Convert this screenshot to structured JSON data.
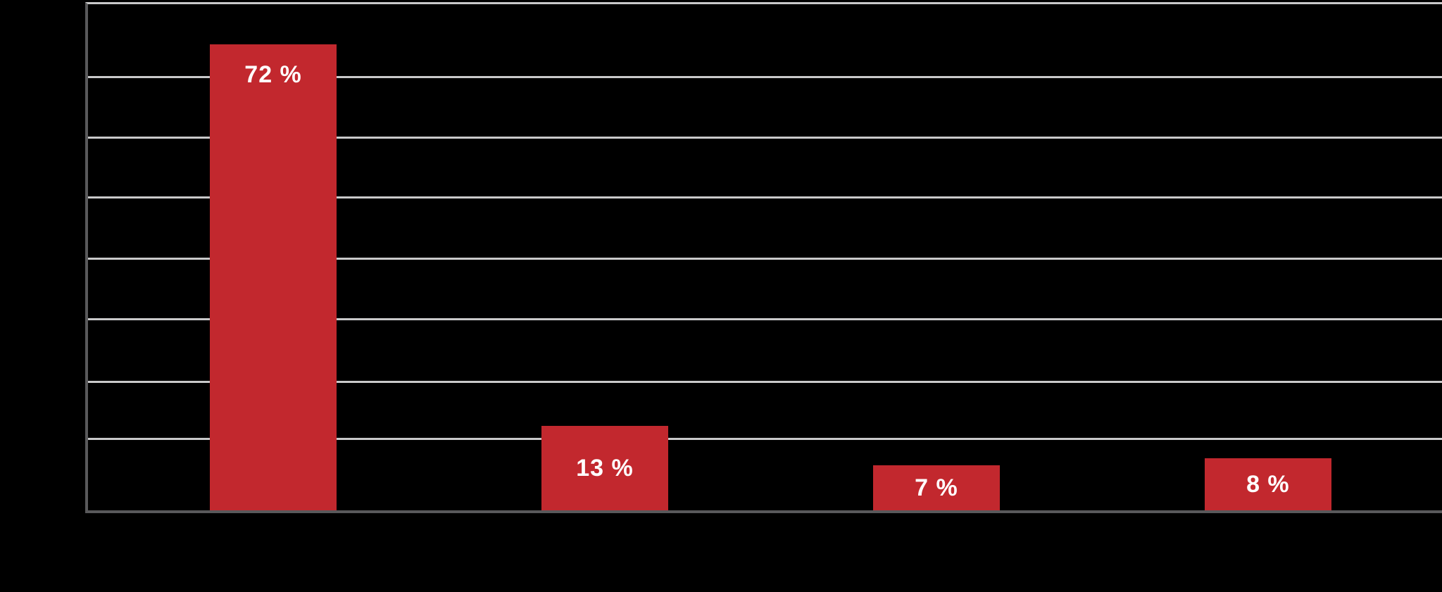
{
  "chart_data": {
    "type": "bar",
    "values": [
      72,
      13,
      7,
      8
    ],
    "data_labels": [
      "72 %",
      "13 %",
      "7 %",
      "8 %"
    ],
    "categories": [
      "",
      "",
      "",
      ""
    ],
    "legend": "none",
    "axis": {
      "x_tick_labels_visible": false,
      "y_tick_labels_visible": false,
      "gridlines": "horizontal",
      "gridline_count": 7
    }
  },
  "colors": {
    "background": "#000000",
    "bar": "#c2282e",
    "bar_label": "#ffffff",
    "gridline": "#c9c9ca",
    "axis": "#59595b"
  }
}
